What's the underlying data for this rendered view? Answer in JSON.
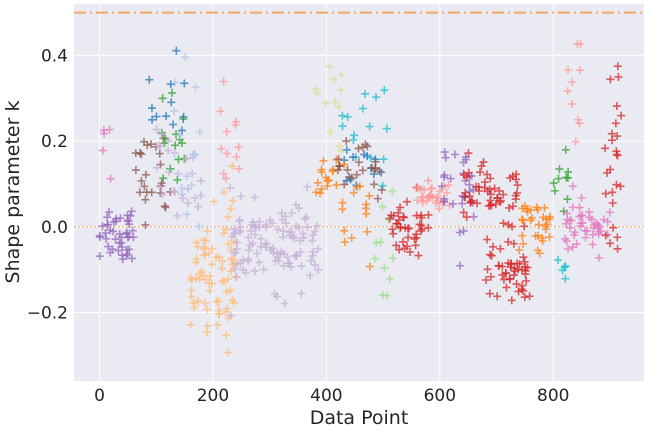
{
  "chart_data": {
    "type": "scatter",
    "title": "",
    "xlabel": "Data Point",
    "ylabel": "Shape parameter k",
    "xlim": [
      -45,
      960
    ],
    "ylim": [
      -0.36,
      0.52
    ],
    "xticks": [
      0,
      200,
      400,
      600,
      800
    ],
    "yticks": [
      -0.2,
      0.0,
      0.2,
      0.4
    ],
    "xtick_labels": [
      "0",
      "200",
      "400",
      "600",
      "800"
    ],
    "ytick_labels": [
      "−0.2",
      "0.0",
      "0.2",
      "0.4"
    ],
    "grid": true,
    "legend": "none",
    "marker": "plus",
    "reference_lines": [
      {
        "y": 0.5,
        "style": "dash-dot",
        "color": "#f4a460"
      },
      {
        "y": 0.0,
        "style": "dotted",
        "color": "#f4a460"
      }
    ],
    "clusters": [
      {
        "color": "#9467bd",
        "x_range": [
          0,
          60
        ],
        "center": -0.01,
        "spread": 0.06,
        "count": 45
      },
      {
        "color": "#8c564b",
        "x_range": [
          55,
          130
        ],
        "center": 0.12,
        "spread": 0.08,
        "count": 25
      },
      {
        "color": "#e377c2",
        "x_range": [
          0,
          20
        ],
        "center": 0.18,
        "spread": 0.05,
        "count": 5
      },
      {
        "color": "#2ca02c",
        "x_range": [
          100,
          150
        ],
        "center": 0.2,
        "spread": 0.1,
        "count": 15
      },
      {
        "color": "#1f77b4",
        "x_range": [
          85,
          150
        ],
        "center": 0.32,
        "spread": 0.12,
        "count": 12
      },
      {
        "color": "#c5b0d5",
        "x_range": [
          100,
          180
        ],
        "center": 0.1,
        "spread": 0.1,
        "count": 25
      },
      {
        "color": "#aec7e8",
        "x_range": [
          130,
          180
        ],
        "center": 0.2,
        "spread": 0.15,
        "count": 15
      },
      {
        "color": "#ffbb78",
        "x_range": [
          160,
          240
        ],
        "center": -0.1,
        "spread": 0.14,
        "count": 75
      },
      {
        "color": "#ff9896",
        "x_range": [
          210,
          250
        ],
        "center": 0.18,
        "spread": 0.1,
        "count": 12
      },
      {
        "color": "#c5b0d5",
        "x_range": [
          230,
          390
        ],
        "center": -0.04,
        "spread": 0.08,
        "count": 110
      },
      {
        "color": "#dbdb8d",
        "x_range": [
          380,
          430
        ],
        "center": 0.25,
        "spread": 0.12,
        "count": 12
      },
      {
        "color": "#ff7f0e",
        "x_range": [
          380,
          420
        ],
        "center": 0.11,
        "spread": 0.05,
        "count": 15
      },
      {
        "color": "#17becf",
        "x_range": [
          420,
          520
        ],
        "center": 0.2,
        "spread": 0.14,
        "count": 15
      },
      {
        "color": "#1f77b4",
        "x_range": [
          430,
          500
        ],
        "center": 0.14,
        "spread": 0.03,
        "count": 12
      },
      {
        "color": "#8c564b",
        "x_range": [
          420,
          500
        ],
        "center": 0.13,
        "spread": 0.05,
        "count": 25
      },
      {
        "color": "#ff7f0e",
        "x_range": [
          420,
          480
        ],
        "center": 0.03,
        "spread": 0.08,
        "count": 15
      },
      {
        "color": "#98df8a",
        "x_range": [
          480,
          530
        ],
        "center": -0.05,
        "spread": 0.1,
        "count": 12
      },
      {
        "color": "#d62728",
        "x_range": [
          510,
          580
        ],
        "center": 0.0,
        "spread": 0.08,
        "count": 40
      },
      {
        "color": "#ff9896",
        "x_range": [
          560,
          620
        ],
        "center": 0.07,
        "spread": 0.03,
        "count": 30
      },
      {
        "color": "#9467bd",
        "x_range": [
          600,
          660
        ],
        "center": 0.08,
        "spread": 0.1,
        "count": 30
      },
      {
        "color": "#d62728",
        "x_range": [
          640,
          740
        ],
        "center": 0.08,
        "spread": 0.05,
        "count": 50
      },
      {
        "color": "#d62728",
        "x_range": [
          680,
          760
        ],
        "center": -0.1,
        "spread": 0.07,
        "count": 50
      },
      {
        "color": "#ff7f0e",
        "x_range": [
          740,
          800
        ],
        "center": 0.0,
        "spread": 0.05,
        "count": 30
      },
      {
        "color": "#2ca02c",
        "x_range": [
          800,
          830
        ],
        "center": 0.1,
        "spread": 0.08,
        "count": 10
      },
      {
        "color": "#17becf",
        "x_range": [
          800,
          830
        ],
        "center": -0.1,
        "spread": 0.03,
        "count": 5
      },
      {
        "color": "#e377c2",
        "x_range": [
          820,
          900
        ],
        "center": 0.0,
        "spread": 0.05,
        "count": 45
      },
      {
        "color": "#ff9896",
        "x_range": [
          820,
          850
        ],
        "center": 0.35,
        "spread": 0.15,
        "count": 10
      },
      {
        "color": "#d62728",
        "x_range": [
          890,
          920
        ],
        "center": 0.15,
        "spread": 0.16,
        "count": 25
      }
    ]
  }
}
